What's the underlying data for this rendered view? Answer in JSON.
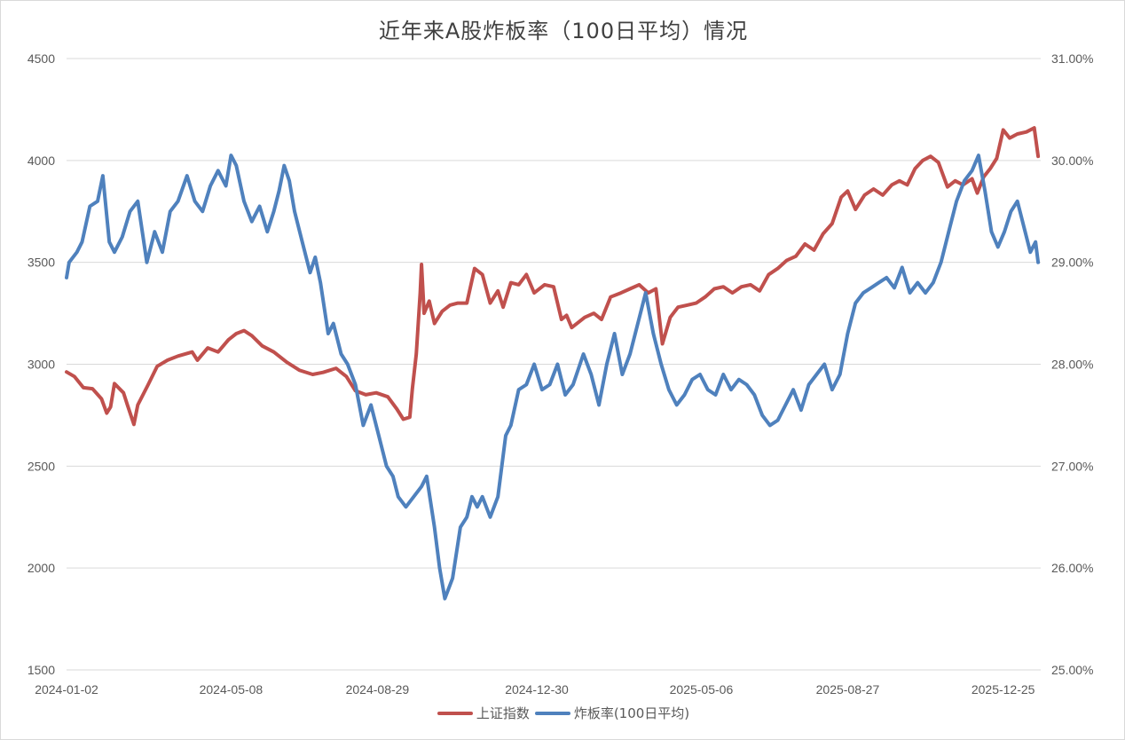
{
  "chart_data": {
    "type": "line",
    "title": "近年来A股炸板率（100日平均）情况",
    "x_tick_labels": [
      "2024-01-02",
      "2024-05-08",
      "2024-08-29",
      "2024-12-30",
      "2025-05-06",
      "2025-08-27",
      "2025-12-25"
    ],
    "x_range": [
      "2024-01-02",
      "2026-01-23"
    ],
    "left_axis": {
      "ylim": [
        1500,
        4500
      ],
      "ticks": [
        1500,
        2000,
        2500,
        3000,
        3500,
        4000,
        4500
      ],
      "tick_labels": [
        "1500",
        "2000",
        "2500",
        "3000",
        "3500",
        "4000",
        "4500"
      ]
    },
    "right_axis": {
      "ylim": [
        25.0,
        31.0
      ],
      "ticks": [
        25.0,
        26.0,
        27.0,
        28.0,
        29.0,
        30.0,
        31.0
      ],
      "tick_labels": [
        "25.00%",
        "26.00%",
        "27.00%",
        "28.00%",
        "29.00%",
        "30.00%",
        "31.00%"
      ]
    },
    "grid": "horizontal",
    "legend_position": "bottom",
    "series": [
      {
        "name": "上证指数",
        "axis": "left",
        "color": "#c0504d",
        "points": [
          [
            "2024-01-02",
            2962
          ],
          [
            "2024-01-08",
            2940
          ],
          [
            "2024-01-15",
            2885
          ],
          [
            "2024-01-22",
            2880
          ],
          [
            "2024-01-29",
            2830
          ],
          [
            "2024-02-02",
            2760
          ],
          [
            "2024-02-05",
            2790
          ],
          [
            "2024-02-08",
            2905
          ],
          [
            "2024-02-15",
            2860
          ],
          [
            "2024-02-18",
            2800
          ],
          [
            "2024-02-23",
            2705
          ],
          [
            "2024-02-26",
            2800
          ],
          [
            "2024-03-05",
            2900
          ],
          [
            "2024-03-12",
            2990
          ],
          [
            "2024-03-20",
            3020
          ],
          [
            "2024-03-28",
            3040
          ],
          [
            "2024-04-08",
            3060
          ],
          [
            "2024-04-12",
            3020
          ],
          [
            "2024-04-20",
            3080
          ],
          [
            "2024-04-28",
            3060
          ],
          [
            "2024-05-06",
            3120
          ],
          [
            "2024-05-12",
            3150
          ],
          [
            "2024-05-18",
            3165
          ],
          [
            "2024-05-24",
            3140
          ],
          [
            "2024-06-01",
            3090
          ],
          [
            "2024-06-10",
            3060
          ],
          [
            "2024-06-20",
            3010
          ],
          [
            "2024-06-30",
            2970
          ],
          [
            "2024-07-10",
            2950
          ],
          [
            "2024-07-18",
            2960
          ],
          [
            "2024-07-28",
            2980
          ],
          [
            "2024-08-05",
            2940
          ],
          [
            "2024-08-12",
            2870
          ],
          [
            "2024-08-20",
            2850
          ],
          [
            "2024-08-28",
            2860
          ],
          [
            "2024-09-06",
            2840
          ],
          [
            "2024-09-13",
            2780
          ],
          [
            "2024-09-18",
            2730
          ],
          [
            "2024-09-23",
            2740
          ],
          [
            "2024-09-25",
            2880
          ],
          [
            "2024-09-28",
            3050
          ],
          [
            "2024-10-01",
            3350
          ],
          [
            "2024-10-02",
            3490
          ],
          [
            "2024-10-04",
            3250
          ],
          [
            "2024-10-08",
            3310
          ],
          [
            "2024-10-12",
            3200
          ],
          [
            "2024-10-18",
            3260
          ],
          [
            "2024-10-24",
            3290
          ],
          [
            "2024-10-30",
            3300
          ],
          [
            "2024-11-06",
            3300
          ],
          [
            "2024-11-12",
            3470
          ],
          [
            "2024-11-18",
            3440
          ],
          [
            "2024-11-24",
            3300
          ],
          [
            "2024-11-30",
            3360
          ],
          [
            "2024-12-04",
            3280
          ],
          [
            "2024-12-10",
            3400
          ],
          [
            "2024-12-16",
            3390
          ],
          [
            "2024-12-22",
            3440
          ],
          [
            "2024-12-28",
            3350
          ],
          [
            "2025-01-05",
            3390
          ],
          [
            "2025-01-12",
            3380
          ],
          [
            "2025-01-18",
            3220
          ],
          [
            "2025-01-22",
            3240
          ],
          [
            "2025-01-26",
            3180
          ],
          [
            "2025-02-05",
            3230
          ],
          [
            "2025-02-12",
            3250
          ],
          [
            "2025-02-18",
            3220
          ],
          [
            "2025-02-25",
            3330
          ],
          [
            "2025-03-05",
            3350
          ],
          [
            "2025-03-12",
            3370
          ],
          [
            "2025-03-19",
            3390
          ],
          [
            "2025-03-26",
            3350
          ],
          [
            "2025-04-01",
            3370
          ],
          [
            "2025-04-06",
            3100
          ],
          [
            "2025-04-12",
            3230
          ],
          [
            "2025-04-18",
            3280
          ],
          [
            "2025-04-25",
            3290
          ],
          [
            "2025-05-02",
            3300
          ],
          [
            "2025-05-09",
            3330
          ],
          [
            "2025-05-16",
            3370
          ],
          [
            "2025-05-23",
            3380
          ],
          [
            "2025-05-30",
            3350
          ],
          [
            "2025-06-06",
            3380
          ],
          [
            "2025-06-13",
            3390
          ],
          [
            "2025-06-20",
            3360
          ],
          [
            "2025-06-27",
            3440
          ],
          [
            "2025-07-04",
            3470
          ],
          [
            "2025-07-11",
            3510
          ],
          [
            "2025-07-18",
            3530
          ],
          [
            "2025-07-25",
            3590
          ],
          [
            "2025-08-01",
            3560
          ],
          [
            "2025-08-08",
            3640
          ],
          [
            "2025-08-15",
            3690
          ],
          [
            "2025-08-22",
            3820
          ],
          [
            "2025-08-27",
            3850
          ],
          [
            "2025-09-02",
            3760
          ],
          [
            "2025-09-09",
            3830
          ],
          [
            "2025-09-16",
            3860
          ],
          [
            "2025-09-23",
            3830
          ],
          [
            "2025-09-30",
            3880
          ],
          [
            "2025-10-06",
            3900
          ],
          [
            "2025-10-12",
            3880
          ],
          [
            "2025-10-18",
            3960
          ],
          [
            "2025-10-24",
            4000
          ],
          [
            "2025-10-30",
            4020
          ],
          [
            "2025-11-05",
            3990
          ],
          [
            "2025-11-12",
            3870
          ],
          [
            "2025-11-18",
            3900
          ],
          [
            "2025-11-24",
            3880
          ],
          [
            "2025-12-01",
            3910
          ],
          [
            "2025-12-05",
            3840
          ],
          [
            "2025-12-10",
            3920
          ],
          [
            "2025-12-15",
            3960
          ],
          [
            "2025-12-20",
            4010
          ],
          [
            "2025-12-25",
            4150
          ],
          [
            "2025-12-30",
            4110
          ],
          [
            "2026-01-05",
            4130
          ],
          [
            "2026-01-12",
            4140
          ],
          [
            "2026-01-18",
            4160
          ],
          [
            "2026-01-21",
            4020
          ]
        ]
      },
      {
        "name": "炸板率(100日平均)",
        "axis": "right",
        "color": "#4f81bd",
        "points": [
          [
            "2024-01-02",
            28.85
          ],
          [
            "2024-01-04",
            29.0
          ],
          [
            "2024-01-10",
            29.1
          ],
          [
            "2024-01-14",
            29.2
          ],
          [
            "2024-01-20",
            29.55
          ],
          [
            "2024-01-26",
            29.6
          ],
          [
            "2024-01-30",
            29.85
          ],
          [
            "2024-02-04",
            29.2
          ],
          [
            "2024-02-08",
            29.1
          ],
          [
            "2024-02-14",
            29.25
          ],
          [
            "2024-02-20",
            29.5
          ],
          [
            "2024-02-26",
            29.6
          ],
          [
            "2024-03-04",
            29.0
          ],
          [
            "2024-03-10",
            29.3
          ],
          [
            "2024-03-16",
            29.1
          ],
          [
            "2024-03-22",
            29.5
          ],
          [
            "2024-03-28",
            29.6
          ],
          [
            "2024-04-04",
            29.85
          ],
          [
            "2024-04-10",
            29.6
          ],
          [
            "2024-04-16",
            29.5
          ],
          [
            "2024-04-22",
            29.75
          ],
          [
            "2024-04-28",
            29.9
          ],
          [
            "2024-05-04",
            29.75
          ],
          [
            "2024-05-08",
            30.05
          ],
          [
            "2024-05-12",
            29.95
          ],
          [
            "2024-05-18",
            29.6
          ],
          [
            "2024-05-24",
            29.4
          ],
          [
            "2024-05-30",
            29.55
          ],
          [
            "2024-06-05",
            29.3
          ],
          [
            "2024-06-10",
            29.5
          ],
          [
            "2024-06-14",
            29.7
          ],
          [
            "2024-06-18",
            29.95
          ],
          [
            "2024-06-22",
            29.8
          ],
          [
            "2024-06-26",
            29.5
          ],
          [
            "2024-07-02",
            29.2
          ],
          [
            "2024-07-08",
            28.9
          ],
          [
            "2024-07-12",
            29.05
          ],
          [
            "2024-07-16",
            28.8
          ],
          [
            "2024-07-22",
            28.3
          ],
          [
            "2024-07-26",
            28.4
          ],
          [
            "2024-08-01",
            28.1
          ],
          [
            "2024-08-06",
            28.0
          ],
          [
            "2024-08-12",
            27.8
          ],
          [
            "2024-08-18",
            27.4
          ],
          [
            "2024-08-24",
            27.6
          ],
          [
            "2024-08-30",
            27.3
          ],
          [
            "2024-09-05",
            27.0
          ],
          [
            "2024-09-10",
            26.9
          ],
          [
            "2024-09-14",
            26.7
          ],
          [
            "2024-09-20",
            26.6
          ],
          [
            "2024-09-26",
            26.7
          ],
          [
            "2024-10-02",
            26.8
          ],
          [
            "2024-10-06",
            26.9
          ],
          [
            "2024-10-12",
            26.4
          ],
          [
            "2024-10-16",
            26.0
          ],
          [
            "2024-10-20",
            25.7
          ],
          [
            "2024-10-26",
            25.9
          ],
          [
            "2024-11-01",
            26.4
          ],
          [
            "2024-11-06",
            26.5
          ],
          [
            "2024-11-10",
            26.7
          ],
          [
            "2024-11-14",
            26.6
          ],
          [
            "2024-11-18",
            26.7
          ],
          [
            "2024-11-24",
            26.5
          ],
          [
            "2024-11-30",
            26.7
          ],
          [
            "2024-12-06",
            27.3
          ],
          [
            "2024-12-10",
            27.4
          ],
          [
            "2024-12-16",
            27.75
          ],
          [
            "2024-12-22",
            27.8
          ],
          [
            "2024-12-28",
            28.0
          ],
          [
            "2025-01-03",
            27.75
          ],
          [
            "2025-01-09",
            27.8
          ],
          [
            "2025-01-15",
            28.0
          ],
          [
            "2025-01-21",
            27.7
          ],
          [
            "2025-01-27",
            27.8
          ],
          [
            "2025-02-04",
            28.1
          ],
          [
            "2025-02-10",
            27.9
          ],
          [
            "2025-02-16",
            27.6
          ],
          [
            "2025-02-22",
            28.0
          ],
          [
            "2025-02-28",
            28.3
          ],
          [
            "2025-03-06",
            27.9
          ],
          [
            "2025-03-12",
            28.1
          ],
          [
            "2025-03-18",
            28.4
          ],
          [
            "2025-03-24",
            28.7
          ],
          [
            "2025-03-30",
            28.3
          ],
          [
            "2025-04-05",
            28.0
          ],
          [
            "2025-04-11",
            27.75
          ],
          [
            "2025-04-17",
            27.6
          ],
          [
            "2025-04-23",
            27.7
          ],
          [
            "2025-04-29",
            27.85
          ],
          [
            "2025-05-05",
            27.9
          ],
          [
            "2025-05-11",
            27.75
          ],
          [
            "2025-05-17",
            27.7
          ],
          [
            "2025-05-23",
            27.9
          ],
          [
            "2025-05-29",
            27.75
          ],
          [
            "2025-06-04",
            27.85
          ],
          [
            "2025-06-10",
            27.8
          ],
          [
            "2025-06-16",
            27.7
          ],
          [
            "2025-06-22",
            27.5
          ],
          [
            "2025-06-28",
            27.4
          ],
          [
            "2025-07-04",
            27.45
          ],
          [
            "2025-07-10",
            27.6
          ],
          [
            "2025-07-16",
            27.75
          ],
          [
            "2025-07-22",
            27.55
          ],
          [
            "2025-07-28",
            27.8
          ],
          [
            "2025-08-03",
            27.9
          ],
          [
            "2025-08-09",
            28.0
          ],
          [
            "2025-08-15",
            27.75
          ],
          [
            "2025-08-21",
            27.9
          ],
          [
            "2025-08-27",
            28.3
          ],
          [
            "2025-09-02",
            28.6
          ],
          [
            "2025-09-08",
            28.7
          ],
          [
            "2025-09-14",
            28.75
          ],
          [
            "2025-09-20",
            28.8
          ],
          [
            "2025-09-26",
            28.85
          ],
          [
            "2025-10-02",
            28.75
          ],
          [
            "2025-10-08",
            28.95
          ],
          [
            "2025-10-14",
            28.7
          ],
          [
            "2025-10-20",
            28.8
          ],
          [
            "2025-10-26",
            28.7
          ],
          [
            "2025-11-01",
            28.8
          ],
          [
            "2025-11-07",
            29.0
          ],
          [
            "2025-11-13",
            29.3
          ],
          [
            "2025-11-19",
            29.6
          ],
          [
            "2025-11-25",
            29.8
          ],
          [
            "2025-12-01",
            29.9
          ],
          [
            "2025-12-06",
            30.05
          ],
          [
            "2025-12-11",
            29.7
          ],
          [
            "2025-12-16",
            29.3
          ],
          [
            "2025-12-21",
            29.15
          ],
          [
            "2025-12-26",
            29.3
          ],
          [
            "2025-12-31",
            29.5
          ],
          [
            "2026-01-05",
            29.6
          ],
          [
            "2026-01-10",
            29.35
          ],
          [
            "2026-01-15",
            29.1
          ],
          [
            "2026-01-19",
            29.2
          ],
          [
            "2026-01-21",
            29.0
          ]
        ]
      }
    ]
  }
}
